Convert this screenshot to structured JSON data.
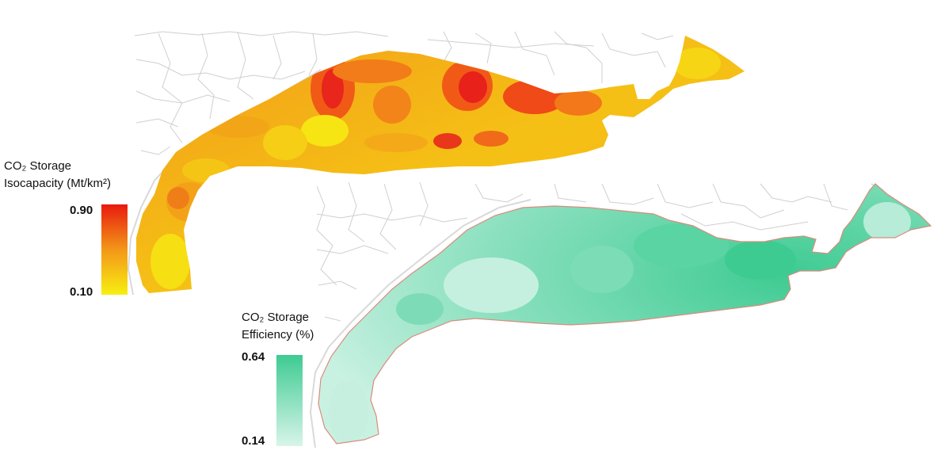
{
  "maps": [
    {
      "id": "isocapacity",
      "legend_title_line1": "CO₂ Storage",
      "legend_title_line2": "Isocapacity (Mt/km²)",
      "max_label": "0.90",
      "min_label": "0.10",
      "colors": {
        "high": "#e81b0e",
        "mid": "#f39718",
        "low": "#f7ef12"
      }
    },
    {
      "id": "efficiency",
      "legend_title_line1": "CO₂ Storage",
      "legend_title_line2": "Efficiency (%)",
      "max_label": "0.64",
      "min_label": "0.14",
      "colors": {
        "high": "#3ecb92",
        "low": "#d8f5ea"
      }
    }
  ],
  "colors": {
    "county_lines": "#cfcfcf",
    "coastline": "#d9d9d9",
    "region_outline": "#d98c7e"
  }
}
